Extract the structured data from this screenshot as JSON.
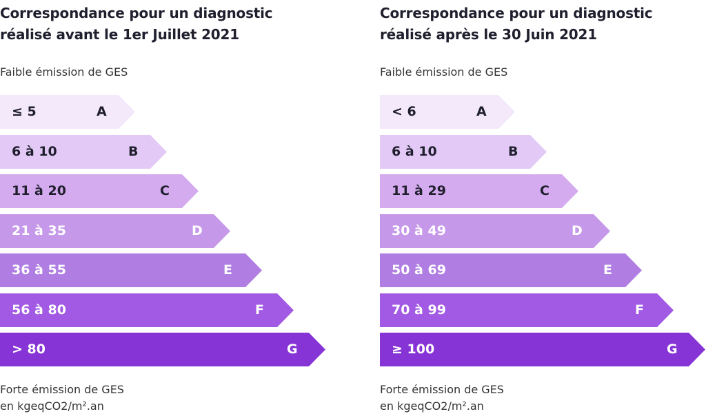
{
  "panels": [
    {
      "title_line1": "Correspondance pour un diagnostic",
      "title_line2": "réalisé avant le 1er Juillet 2021",
      "top_label": "Faible émission de GES",
      "bottom_label_line1": "Forte émission de GES",
      "bottom_label_line2": "en kgeqCO2/m².an",
      "classes": [
        {
          "letter": "A",
          "range": "≤ 5"
        },
        {
          "letter": "B",
          "range": "6 à 10"
        },
        {
          "letter": "C",
          "range": "11 à 20"
        },
        {
          "letter": "D",
          "range": "21 à 35"
        },
        {
          "letter": "E",
          "range": "36 à 55"
        },
        {
          "letter": "F",
          "range": "56 à 80"
        },
        {
          "letter": "G",
          "range": "> 80"
        }
      ]
    },
    {
      "title_line1": "Correspondance pour un diagnostic",
      "title_line2": "réalisé après le 30 Juin 2021",
      "top_label": "Faible émission de GES",
      "bottom_label_line1": "Forte émission de GES",
      "bottom_label_line2": "en kgeqCO2/m².an",
      "classes": [
        {
          "letter": "A",
          "range": "< 6"
        },
        {
          "letter": "B",
          "range": "6 à 10"
        },
        {
          "letter": "C",
          "range": "11 à 29"
        },
        {
          "letter": "D",
          "range": "30 à 49"
        },
        {
          "letter": "E",
          "range": "50 à 69"
        },
        {
          "letter": "F",
          "range": "70 à 99"
        },
        {
          "letter": "G",
          "range": "≥ 100"
        }
      ]
    }
  ],
  "colors": {
    "bars": [
      "#f4e9fb",
      "#e3c9f6",
      "#d4abee",
      "#c698e9",
      "#b07ee3",
      "#a259e3",
      "#8634d6"
    ],
    "text_dark": "#1f1f2e",
    "text_light": "#ffffff"
  }
}
